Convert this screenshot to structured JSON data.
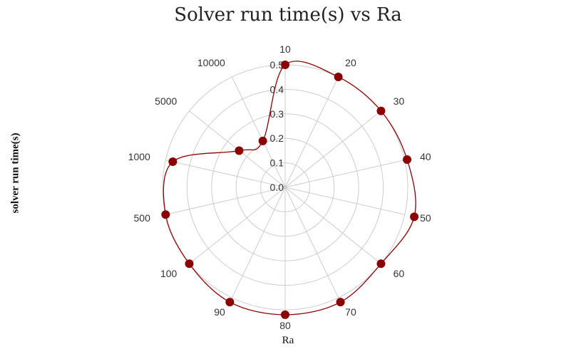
{
  "chart_data": {
    "type": "polar-line",
    "title": "Solver run time(s) vs Ra",
    "xlabel": "Ra",
    "ylabel": "solver run time(s)",
    "categories": [
      "10",
      "20",
      "30",
      "40",
      "50",
      "60",
      "70",
      "80",
      "90",
      "100",
      "500",
      "1000",
      "5000",
      "10000"
    ],
    "series": [
      {
        "name": "",
        "values": [
          0.5,
          0.5,
          0.5,
          0.51,
          0.54,
          0.5,
          0.52,
          0.52,
          0.52,
          0.5,
          0.5,
          0.47,
          0.24,
          0.21
        ]
      }
    ],
    "radial_ticks": [
      "0.0",
      "0.1",
      "0.2",
      "0.3",
      "0.4",
      "0.5"
    ],
    "rlim": [
      0,
      0.5
    ],
    "grid": true,
    "colors": {
      "line": "#8b0000",
      "marker": "#8b0000",
      "grid": "#cccccc"
    }
  }
}
